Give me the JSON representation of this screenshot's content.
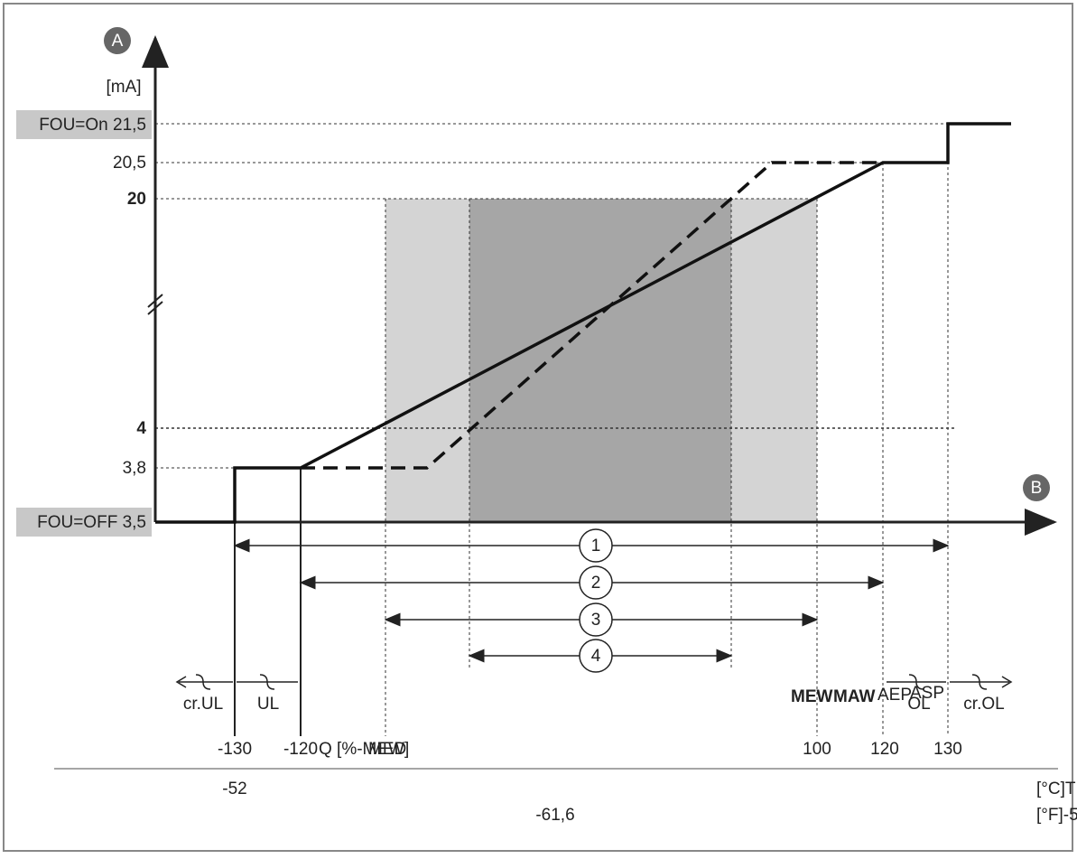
{
  "axis_a": {
    "badge": "A",
    "unit": "[mA]"
  },
  "axis_b": {
    "badge": "B"
  },
  "y_labels": {
    "fou_on": "FOU=On 21,5",
    "v205": "20,5",
    "v20": "20",
    "v4": "4",
    "v38": "3,8",
    "fou_off": "FOU=OFF 3,5"
  },
  "ranges": [
    "1",
    "2",
    "3",
    "4"
  ],
  "zones": {
    "cr_ul": "cr.UL",
    "ul": "UL",
    "mew": "MEW",
    "maw": "MAW",
    "aep": "AEP",
    "asp": "ASP",
    "ol": "OL",
    "cr_ol": "cr.OL"
  },
  "x_labels": {
    "m130": "-130",
    "m120": "-120",
    "q": "Q [%-MEW]",
    "med": "MED",
    "p100": "100",
    "p120": "120",
    "p130": "130"
  },
  "t_labels": {
    "m52": "-52",
    "m616": "-61,6",
    "unit_c": "[°C]T",
    "unit_f": "[°F]-5"
  }
}
